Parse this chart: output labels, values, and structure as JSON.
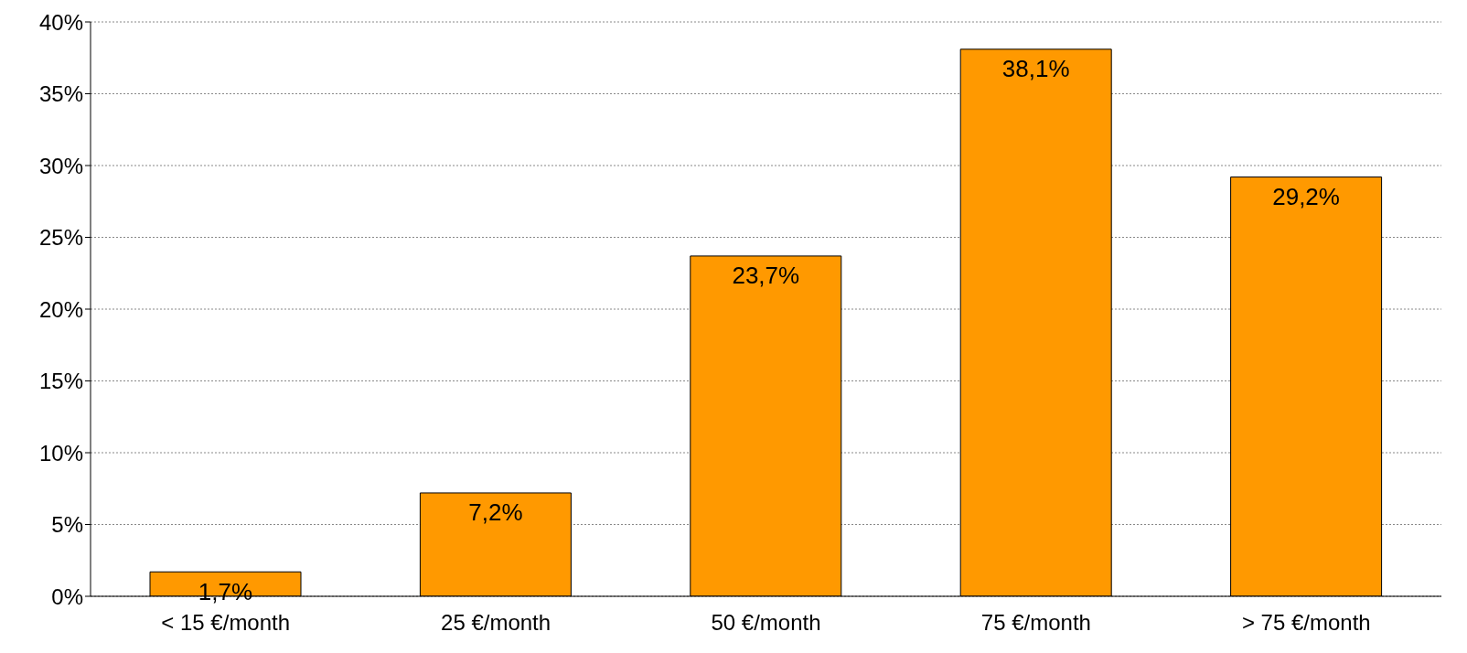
{
  "chart_data": {
    "type": "bar",
    "categories": [
      "< 15 €/month",
      "25 €/month",
      "50 €/month",
      "75 €/month",
      "> 75 €/month"
    ],
    "values": [
      1.7,
      7.2,
      23.7,
      38.1,
      29.2
    ],
    "value_labels": [
      "1,7%",
      "7,2%",
      "23,7%",
      "38,1%",
      "29,2%"
    ],
    "color": "#ff9900",
    "ylim": [
      0,
      40
    ],
    "yticks": [
      {
        "value": 0,
        "label": "0%"
      },
      {
        "value": 5,
        "label": "5%"
      },
      {
        "value": 10,
        "label": "10%"
      },
      {
        "value": 15,
        "label": "15%"
      },
      {
        "value": 20,
        "label": "20%"
      },
      {
        "value": 25,
        "label": "25%"
      },
      {
        "value": 30,
        "label": "30%"
      },
      {
        "value": 35,
        "label": "35%"
      },
      {
        "value": 40,
        "label": "40%"
      }
    ],
    "grid": "y"
  }
}
